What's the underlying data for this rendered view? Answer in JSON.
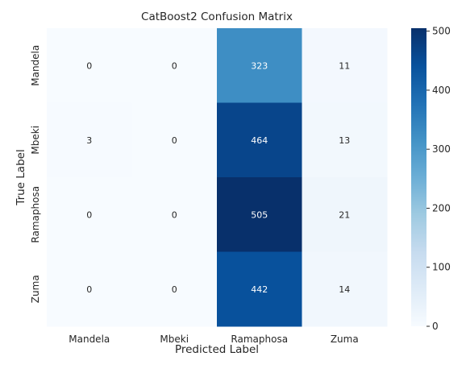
{
  "chart_data": {
    "type": "heatmap",
    "title": "CatBoost2 Confusion Matrix",
    "xlabel": "Predicted Label",
    "ylabel": "True Label",
    "x_categories": [
      "Mandela",
      "Mbeki",
      "Ramaphosa",
      "Zuma"
    ],
    "y_categories": [
      "Mandela",
      "Mbeki",
      "Ramaphosa",
      "Zuma"
    ],
    "values": [
      [
        0,
        0,
        323,
        11
      ],
      [
        3,
        0,
        464,
        13
      ],
      [
        0,
        0,
        505,
        21
      ],
      [
        0,
        0,
        442,
        14
      ]
    ],
    "colorscale": "Blues",
    "colorbar": {
      "min": 0,
      "max": 505,
      "ticks": [
        0,
        100,
        200,
        300,
        400,
        500
      ]
    },
    "grid": false,
    "legend": "colorbar-right"
  }
}
